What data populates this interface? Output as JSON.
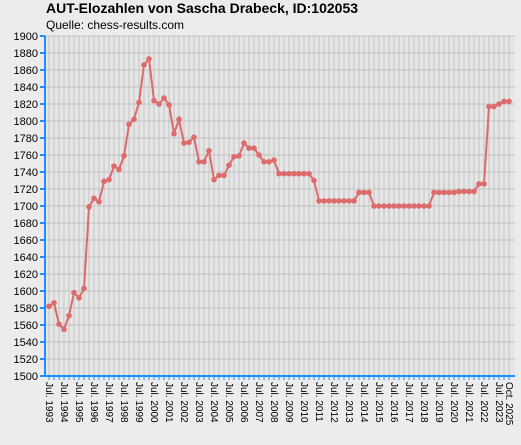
{
  "chart_data": {
    "type": "line",
    "title": "AUT-Elozahlen von Sascha Drabeck, ID:102053",
    "subtitle": "Quelle: chess-results.com",
    "color": "#dd6b6b",
    "grid": true,
    "ylim": [
      1500,
      1900
    ],
    "yticks": [
      1500,
      1520,
      1540,
      1560,
      1580,
      1600,
      1620,
      1640,
      1660,
      1680,
      1700,
      1720,
      1740,
      1760,
      1780,
      1800,
      1820,
      1840,
      1860,
      1880,
      1900
    ],
    "categories": [
      "Jul. 1993",
      null,
      null,
      "Jul. 1994",
      null,
      null,
      "Jul. 1995",
      null,
      null,
      "Jul. 1996",
      null,
      null,
      "Jul. 1997",
      null,
      null,
      "Jul. 1998",
      null,
      null,
      "Jul. 1999",
      null,
      null,
      "Jul. 2000",
      null,
      null,
      "Jul. 2001",
      null,
      null,
      "Jul. 2002",
      null,
      null,
      "Jul. 2003",
      null,
      null,
      "Jul. 2004",
      null,
      null,
      "Jul. 2005",
      null,
      null,
      "Jul. 2006",
      null,
      null,
      "Jul. 2007",
      null,
      null,
      "Jul. 2008",
      null,
      null,
      "Jul. 2009",
      null,
      null,
      "Jul. 2010",
      null,
      null,
      "Jul. 2011",
      null,
      null,
      "Jul. 2012",
      null,
      null,
      "Jul. 2013",
      null,
      null,
      "Jul. 2014",
      null,
      null,
      "Jul. 2015",
      null,
      null,
      "Jul. 2016",
      null,
      null,
      "Jul. 2017",
      null,
      null,
      "Jul. 2018",
      null,
      null,
      "Jul. 2019",
      null,
      null,
      "Jul. 2020",
      null,
      null,
      "Jul. 2021",
      null,
      null,
      "Jul. 2022",
      null,
      null,
      "Jul. 2023",
      null,
      "Oct. 2025"
    ],
    "values": [
      1582,
      1586,
      1561,
      1555,
      1571,
      1598,
      1592,
      1603,
      1699,
      1709,
      1705,
      1729,
      1731,
      1747,
      1743,
      1759,
      1796,
      1802,
      1822,
      1866,
      1873,
      1824,
      1820,
      1827,
      1819,
      1785,
      1802,
      1774,
      1775,
      1781,
      1752,
      1752,
      1765,
      1731,
      1736,
      1736,
      1748,
      1758,
      1759,
      1774,
      1768,
      1768,
      1760,
      1752,
      1752,
      1754,
      1738,
      1738,
      1738,
      1738,
      1738,
      1738,
      1738,
      1730,
      1706,
      1706,
      1706,
      1706,
      1706,
      1706,
      1706,
      1706,
      1716,
      1716,
      1716,
      1700,
      1700,
      1700,
      1700,
      1700,
      1700,
      1700,
      1700,
      1700,
      1700,
      1700,
      1700,
      1716,
      1716,
      1716,
      1716,
      1716,
      1717,
      1717,
      1717,
      1717,
      1726,
      1726,
      1817,
      1817,
      1820,
      1823,
      1823
    ]
  }
}
